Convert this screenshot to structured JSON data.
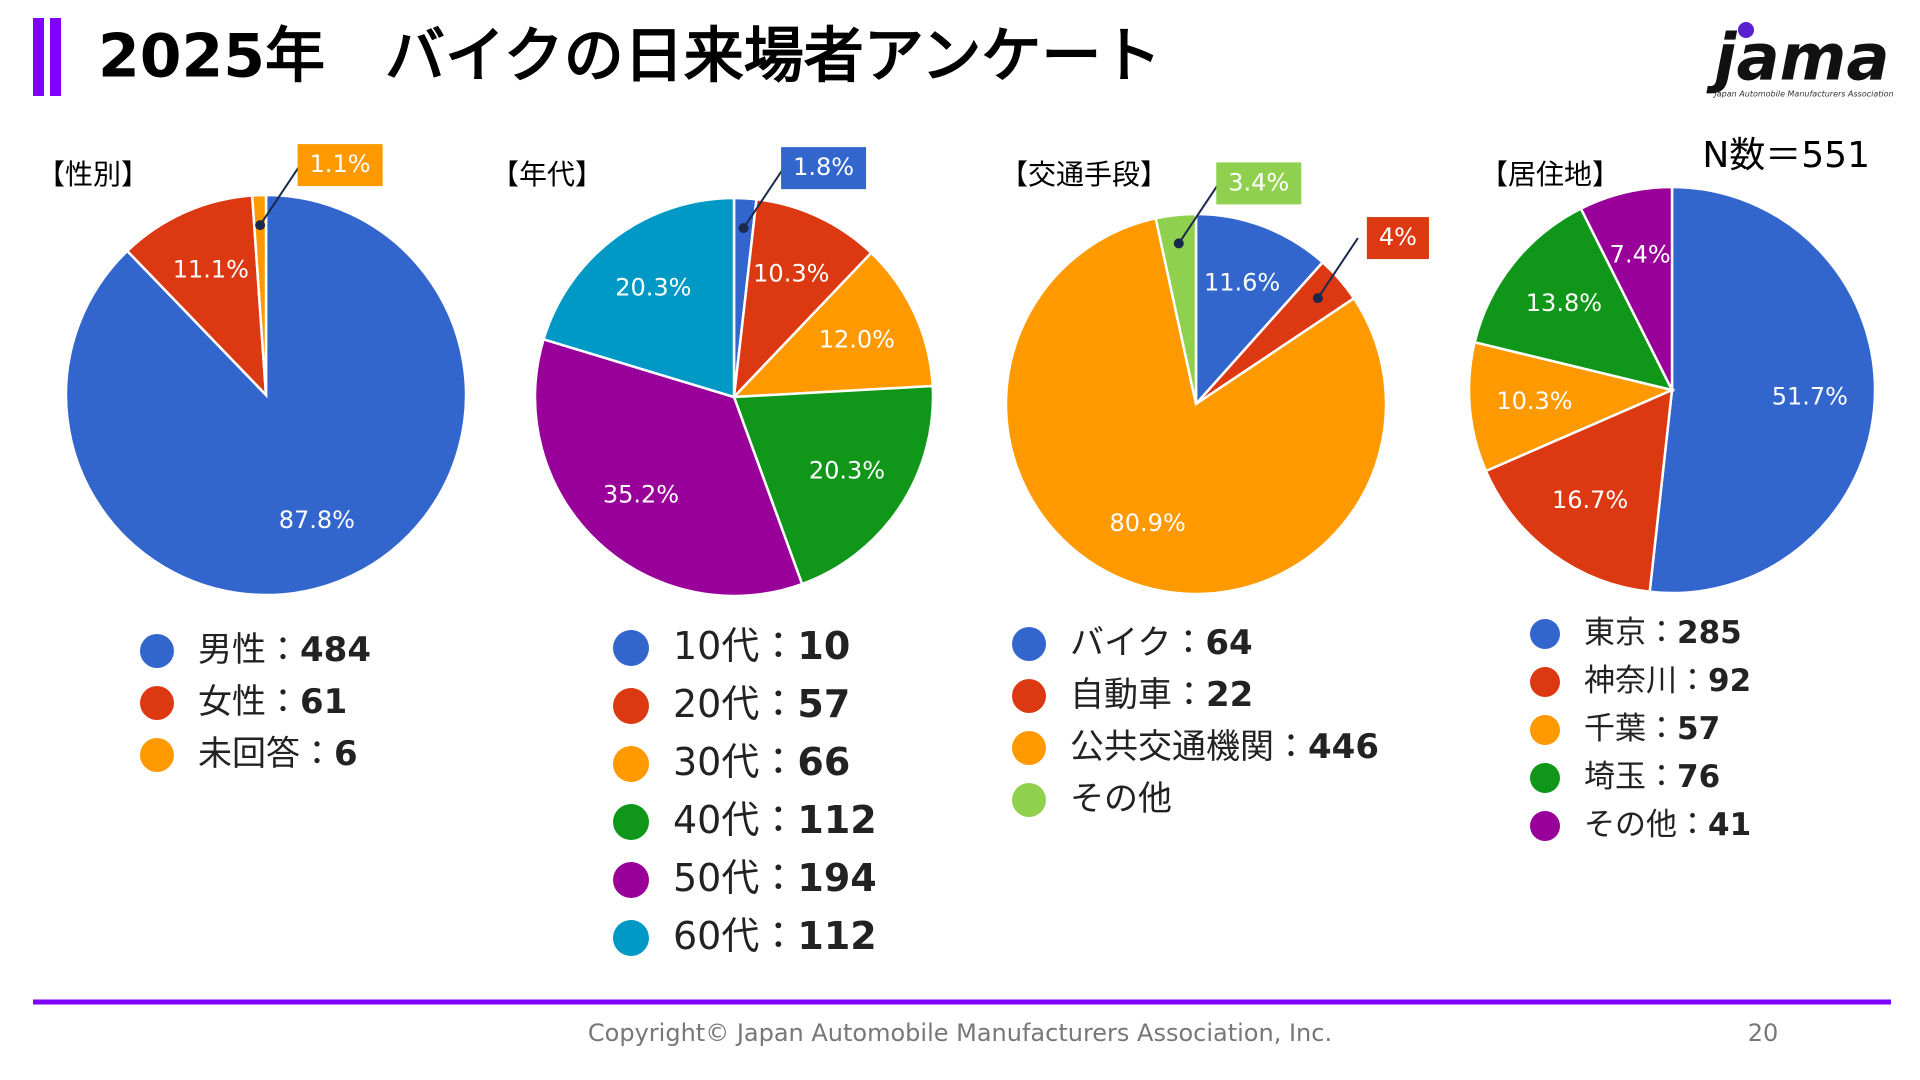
{
  "header": {
    "title": "2025年　バイクの日来場者アンケート",
    "sample_size": "N数＝551"
  },
  "logo": {
    "name": "jama",
    "subtitle": "Japan Automobile Manufacturers Association"
  },
  "legend_separator": "：",
  "footer": {
    "copyright": "Copyright© Japan Automobile Manufacturers Association, Inc.",
    "page": "20"
  },
  "chart_data": [
    {
      "type": "pie",
      "title": "【性別】",
      "categories": [
        "男性",
        "女性",
        "未回答"
      ],
      "values": [
        87.8,
        11.1,
        1.1
      ],
      "value_labels": [
        "87.8%",
        "11.1%",
        "1.1%"
      ],
      "counts": [
        484,
        61,
        6
      ],
      "colors": [
        "#3366cc",
        "#dc3912",
        "#ff9900"
      ]
    },
    {
      "type": "pie",
      "title": "【年代】",
      "categories": [
        "10代",
        "20代",
        "30代",
        "40代",
        "50代",
        "60代"
      ],
      "values": [
        1.8,
        10.3,
        12.0,
        20.3,
        35.2,
        20.3
      ],
      "value_labels": [
        "1.8%",
        "10.3%",
        "12.0%",
        "20.3%",
        "35.2%",
        "20.3%"
      ],
      "counts": [
        10,
        57,
        66,
        112,
        194,
        112
      ],
      "colors": [
        "#3366cc",
        "#dc3912",
        "#ff9900",
        "#109618",
        "#990099",
        "#0099c6"
      ]
    },
    {
      "type": "pie",
      "title": "【交通手段】",
      "categories": [
        "バイク",
        "自動車",
        "公共交通機関",
        "その他"
      ],
      "values": [
        11.6,
        4,
        80.9,
        3.4
      ],
      "value_labels": [
        "11.6%",
        "4%",
        "80.9%",
        "3.4%"
      ],
      "counts": [
        64,
        22,
        446,
        null
      ],
      "colors": [
        "#3366cc",
        "#dc3912",
        "#ff9900",
        "#8fd14f"
      ]
    },
    {
      "type": "pie",
      "title": "【居住地】",
      "categories": [
        "東京",
        "神奈川",
        "千葉",
        "埼玉",
        "その他"
      ],
      "values": [
        51.7,
        16.7,
        10.3,
        13.8,
        7.4
      ],
      "value_labels": [
        "51.7%",
        "16.7%",
        "10.3%",
        "13.8%",
        "7.4%"
      ],
      "counts": [
        285,
        92,
        57,
        76,
        41
      ],
      "colors": [
        "#3366cc",
        "#dc3912",
        "#ff9900",
        "#109618",
        "#990099"
      ]
    }
  ]
}
